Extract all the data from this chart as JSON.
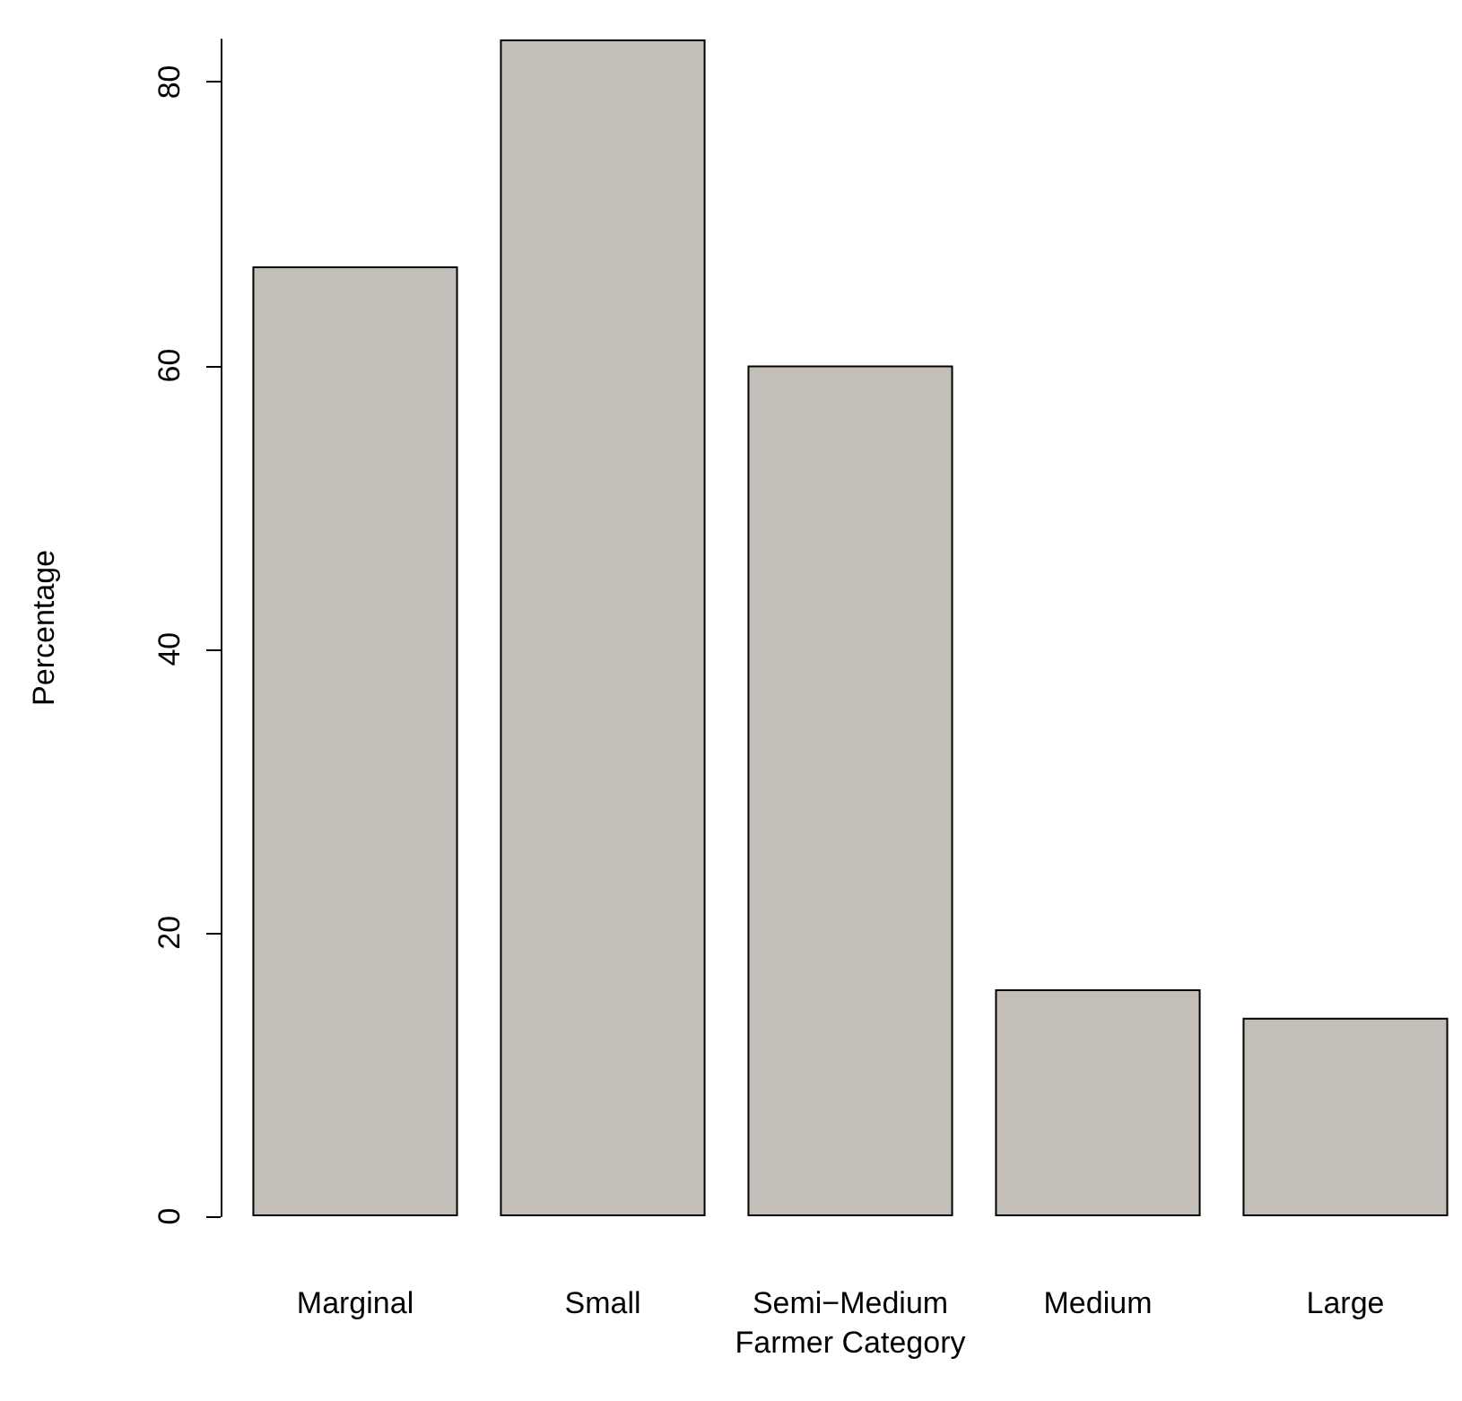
{
  "chart_data": {
    "type": "bar",
    "xlabel": "Farmer Category",
    "ylabel": "Percentage",
    "categories": [
      "Marginal",
      "Small",
      "Semi−Medium",
      "Medium",
      "Large"
    ],
    "values": [
      67,
      83,
      60,
      16,
      14
    ],
    "color": "#c3bfb8",
    "ylim": [
      0,
      83
    ],
    "yticks": [
      0,
      20,
      40,
      60,
      80
    ],
    "grid": false
  }
}
